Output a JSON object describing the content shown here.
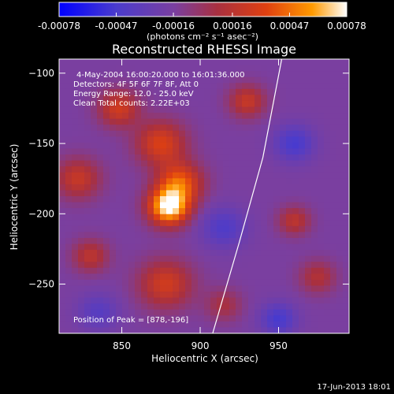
{
  "chart_data": {
    "type": "heatmap",
    "title": "Reconstructed RHESSI Image",
    "xlabel": "Heliocentric X (arcsec)",
    "ylabel": "Heliocentric Y (arcsec)",
    "xlim": [
      810,
      995
    ],
    "ylim": [
      -285,
      -90
    ],
    "x_ticks": [
      850,
      900,
      950
    ],
    "y_ticks": [
      -100,
      -150,
      -200,
      -250
    ],
    "colorbar": {
      "ticks": [
        "-0.00078",
        "-0.00047",
        "-0.00016",
        "0.00016",
        "0.00047",
        "0.00078"
      ],
      "values": [
        -0.00078,
        -0.00047,
        -0.00016,
        0.00016,
        0.00047,
        0.00078
      ],
      "unit_label": "(photons cm⁻² s⁻¹ asec⁻²)",
      "colors": [
        "#0000ff",
        "#4b3ccc",
        "#7a3fa0",
        "#a83040",
        "#e04010",
        "#ff9a00",
        "#ffffff"
      ]
    },
    "annotations": {
      "time": "4-May-2004 16:00:20.000 to 16:01:36.000",
      "detectors": "Detectors: 4F 5F 6F 7F 8F, Att 0",
      "energy": "Energy Range: 12.0 - 25.0 keV",
      "clean": "Clean     Total counts: 2.22E+03",
      "peak": "Position of Peak = [878,-196]"
    },
    "peak": {
      "x": 878,
      "y": -196
    },
    "limb_curve": [
      [
        908,
        -285
      ],
      [
        925,
        -220
      ],
      [
        940,
        -160
      ],
      [
        952,
        -90
      ]
    ],
    "sources": [
      {
        "x": 880,
        "y": -195,
        "amp": 1.0,
        "sigma": 9
      },
      {
        "x": 887,
        "y": -178,
        "amp": 0.6,
        "sigma": 10
      },
      {
        "x": 875,
        "y": -150,
        "amp": 0.5,
        "sigma": 11
      },
      {
        "x": 848,
        "y": -125,
        "amp": 0.45,
        "sigma": 9
      },
      {
        "x": 822,
        "y": -175,
        "amp": 0.4,
        "sigma": 10
      },
      {
        "x": 830,
        "y": -230,
        "amp": 0.35,
        "sigma": 8
      },
      {
        "x": 878,
        "y": -250,
        "amp": 0.45,
        "sigma": 12
      },
      {
        "x": 930,
        "y": -120,
        "amp": 0.4,
        "sigma": 8
      },
      {
        "x": 960,
        "y": -205,
        "amp": 0.35,
        "sigma": 7
      },
      {
        "x": 975,
        "y": -245,
        "amp": 0.3,
        "sigma": 8
      },
      {
        "x": 915,
        "y": -265,
        "amp": 0.25,
        "sigma": 8
      },
      {
        "x": 960,
        "y": -150,
        "amp": -0.35,
        "sigma": 9
      },
      {
        "x": 915,
        "y": -210,
        "amp": -0.3,
        "sigma": 10
      },
      {
        "x": 950,
        "y": -275,
        "amp": -0.35,
        "sigma": 8
      },
      {
        "x": 835,
        "y": -270,
        "amp": -0.25,
        "sigma": 9
      }
    ],
    "footer_date": "17-Jun-2013 18:01"
  }
}
